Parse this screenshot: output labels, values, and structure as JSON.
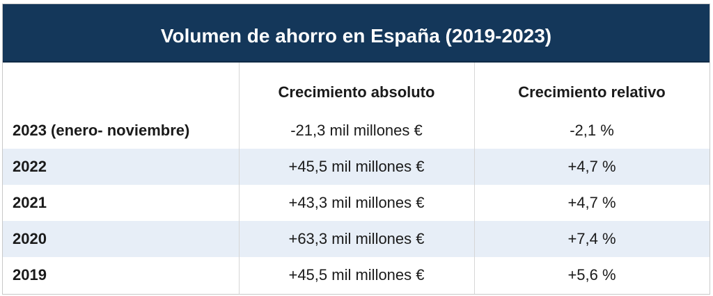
{
  "table": {
    "title": "Volumen de ahorro en España (2019-2023)",
    "headers": {
      "year": "",
      "absolute": "Crecimiento absoluto",
      "relative": "Crecimiento relativo"
    },
    "rows": [
      {
        "year": "2023 (enero- noviembre)",
        "absolute": "-21,3 mil millones €",
        "relative": "-2,1 %"
      },
      {
        "year": "2022",
        "absolute": "+45,5 mil millones €",
        "relative": "+4,7 %"
      },
      {
        "year": "2021",
        "absolute": "+43,3 mil millones €",
        "relative": "+4,7 %"
      },
      {
        "year": "2020",
        "absolute": "+63,3 mil millones €",
        "relative": "+7,4 %"
      },
      {
        "year": "2019",
        "absolute": "+45,5 mil millones €",
        "relative": "+5,6 %"
      }
    ]
  },
  "colors": {
    "title_background": "#14375a",
    "title_text": "#ffffff",
    "row_shade": "#e7eef7",
    "grid_line": "#d6d6d6"
  }
}
